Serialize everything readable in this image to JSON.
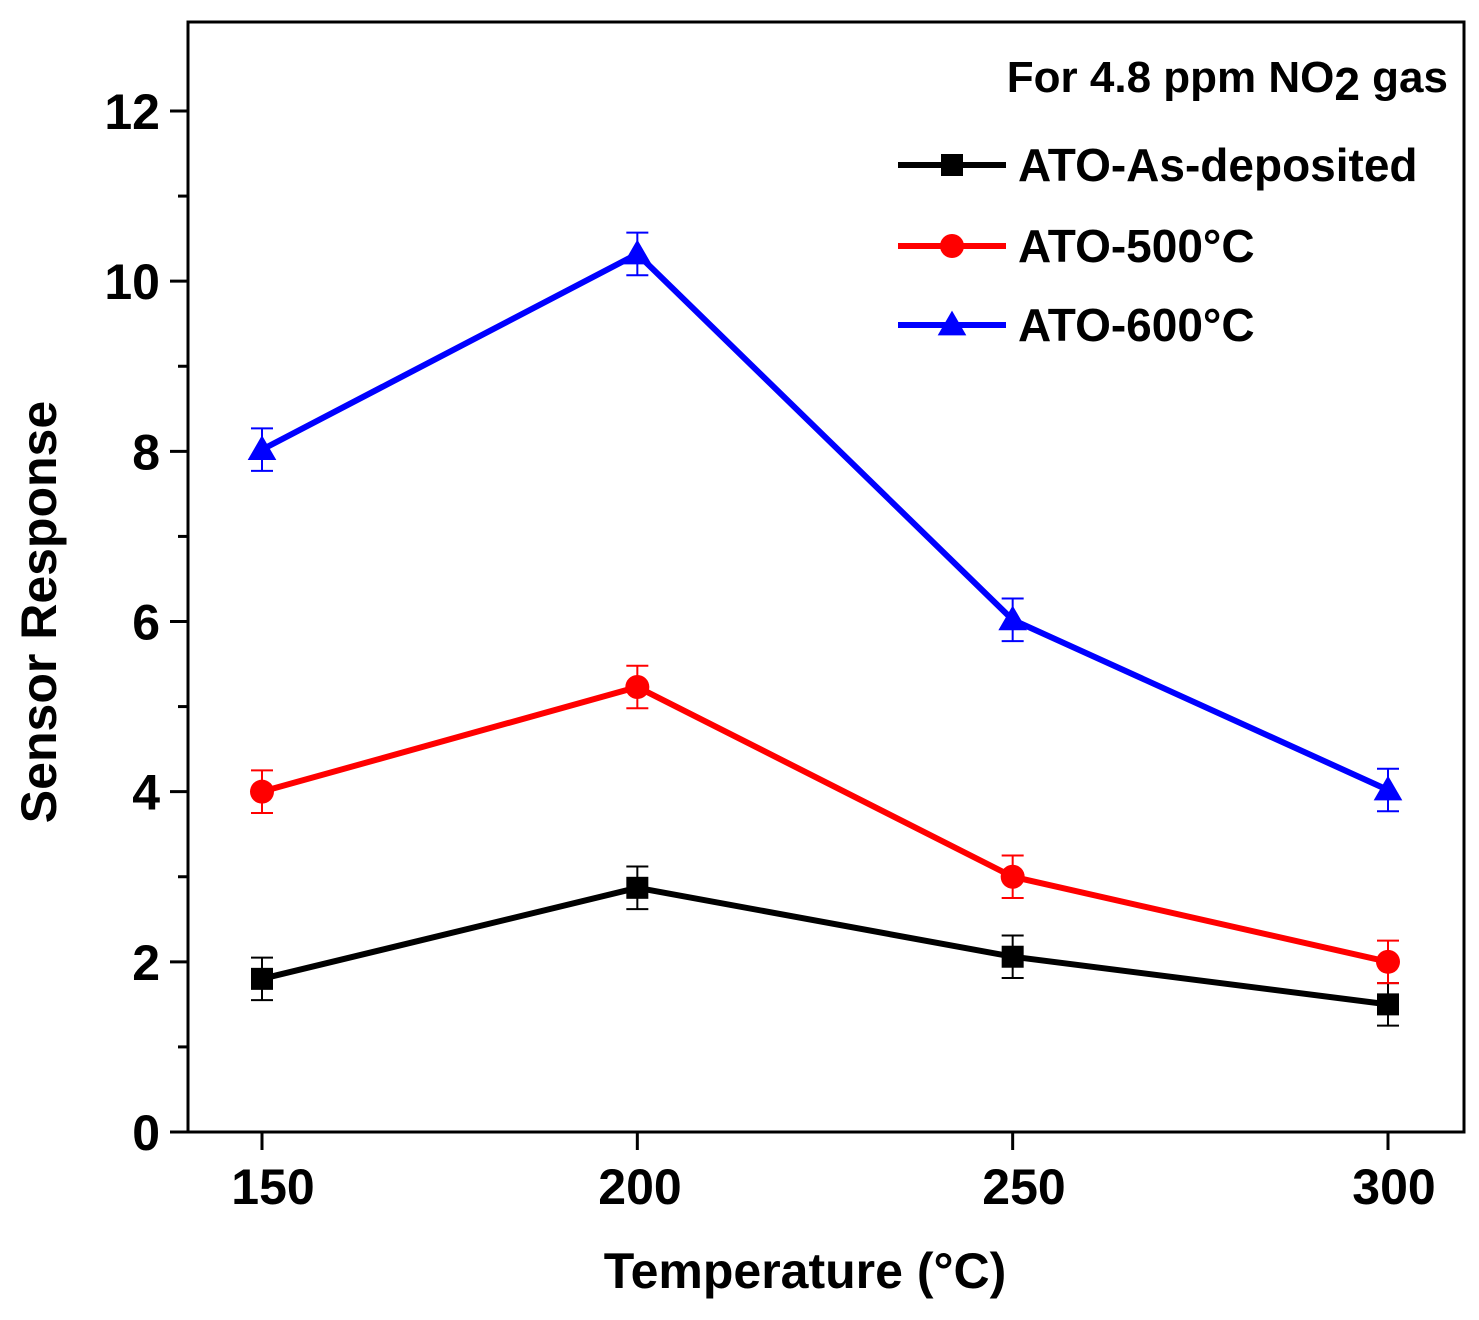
{
  "chart_data": {
    "type": "line",
    "title": "",
    "xlabel": "Temperature (°C)",
    "ylabel": "Sensor Response",
    "x": [
      150,
      200,
      250,
      300
    ],
    "x_ticks": [
      "150",
      "200",
      "250",
      "300"
    ],
    "y_ticks": [
      "0",
      "2",
      "4",
      "6",
      "8",
      "10",
      "12"
    ],
    "ylim": [
      0,
      12.4
    ],
    "xlim": [
      140,
      308
    ],
    "grid": false,
    "legend_position": "top-right",
    "annotation": {
      "prefix": "For 4.8 ppm NO",
      "subscript": "2",
      "suffix": " gas"
    },
    "series": [
      {
        "name": "ATO-As-deposited",
        "color": "#000000",
        "marker": "square",
        "values": [
          1.8,
          2.87,
          2.06,
          1.5
        ],
        "errors": [
          0.25,
          0.25,
          0.25,
          0.25
        ]
      },
      {
        "name": "ATO-500°C",
        "color": "#ff0000",
        "marker": "circle",
        "values": [
          4.0,
          5.23,
          3.0,
          2.0
        ],
        "errors": [
          0.25,
          0.25,
          0.25,
          0.25
        ]
      },
      {
        "name": "ATO-600°C",
        "color": "#0000ff",
        "marker": "triangle",
        "values": [
          8.02,
          10.32,
          6.02,
          4.02
        ],
        "errors": [
          0.25,
          0.25,
          0.25,
          0.25
        ]
      }
    ]
  }
}
